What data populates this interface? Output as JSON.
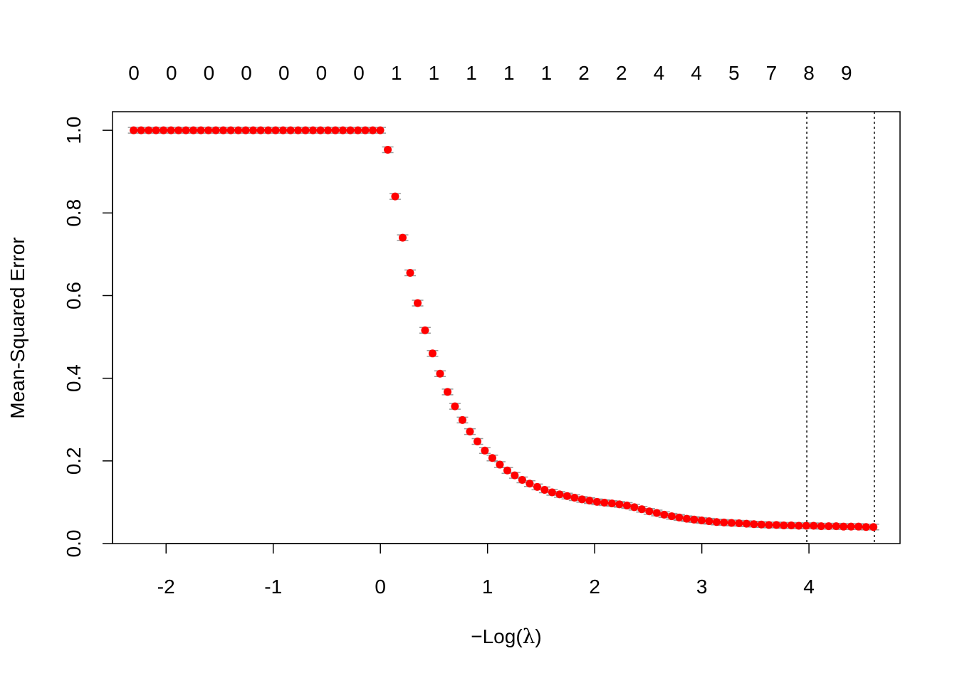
{
  "chart_data": {
    "type": "scatter",
    "title": "",
    "xlabel_prefix": "−",
    "xlabel_main": "Log(",
    "xlabel_symbol": "λ",
    "xlabel_suffix": ")",
    "ylabel": "Mean-Squared Error",
    "xlim": [
      -2.5,
      4.85
    ],
    "ylim": [
      0.0,
      1.045
    ],
    "x_ticks": [
      -2,
      -1,
      0,
      1,
      2,
      3,
      4
    ],
    "x_tick_labels": [
      "-2",
      "-1",
      "0",
      "1",
      "2",
      "3",
      "4"
    ],
    "y_ticks": [
      0.0,
      0.2,
      0.4,
      0.6,
      0.8,
      1.0
    ],
    "y_tick_labels": [
      "0.0",
      "0.2",
      "0.4",
      "0.6",
      "0.8",
      "1.0"
    ],
    "top_axis": {
      "x": [
        -2.3,
        -1.95,
        -1.6,
        -1.25,
        -0.9,
        -0.55,
        -0.2,
        0.15,
        0.5,
        0.85,
        1.2,
        1.55,
        1.9,
        2.25,
        2.6,
        2.95,
        3.3,
        3.65,
        4.0,
        4.35
      ],
      "labels": [
        "0",
        "0",
        "0",
        "0",
        "0",
        "0",
        "0",
        "1",
        "1",
        "1",
        "1",
        "1",
        "2",
        "2",
        "4",
        "4",
        "5",
        "7",
        "8",
        "9"
      ]
    },
    "vlines": [
      3.98,
      4.61
    ],
    "grid": false,
    "point_color": "#ff0000",
    "errorbar_color": "#999999",
    "series": [
      {
        "x": [
          -2.303,
          -2.233,
          -2.163,
          -2.094,
          -2.024,
          -1.954,
          -1.884,
          -1.815,
          -1.745,
          -1.675,
          -1.605,
          -1.536,
          -1.466,
          -1.396,
          -1.326,
          -1.257,
          -1.187,
          -1.117,
          -1.047,
          -0.978,
          -0.908,
          -0.838,
          -0.768,
          -0.699,
          -0.629,
          -0.559,
          -0.489,
          -0.42,
          -0.35,
          -0.28,
          -0.21,
          -0.141,
          -0.071,
          -0.001,
          0.069,
          0.138,
          0.208,
          0.278,
          0.348,
          0.417,
          0.487,
          0.557,
          0.627,
          0.696,
          0.766,
          0.836,
          0.906,
          0.975,
          1.045,
          1.115,
          1.185,
          1.254,
          1.324,
          1.394,
          1.464,
          1.533,
          1.603,
          1.673,
          1.743,
          1.812,
          1.882,
          1.952,
          2.022,
          2.091,
          2.161,
          2.231,
          2.301,
          2.37,
          2.44,
          2.51,
          2.58,
          2.649,
          2.719,
          2.789,
          2.859,
          2.928,
          2.998,
          3.068,
          3.138,
          3.207,
          3.277,
          3.347,
          3.417,
          3.486,
          3.556,
          3.626,
          3.696,
          3.765,
          3.835,
          3.905,
          3.975,
          4.044,
          4.114,
          4.184,
          4.254,
          4.323,
          4.393,
          4.463,
          4.533,
          4.602
        ],
        "y": [
          1.0,
          1.0,
          1.0,
          1.0,
          1.0,
          1.0,
          1.0,
          1.0,
          1.0,
          1.0,
          1.0,
          1.0,
          1.0,
          1.0,
          1.0,
          1.0,
          1.0,
          1.0,
          1.0,
          1.0,
          1.0,
          1.0,
          1.0,
          1.0,
          1.0,
          1.0,
          1.0,
          1.0,
          1.0,
          1.0,
          1.0,
          1.0,
          1.0,
          1.0,
          0.953,
          0.84,
          0.74,
          0.655,
          0.582,
          0.516,
          0.46,
          0.411,
          0.367,
          0.332,
          0.299,
          0.271,
          0.247,
          0.225,
          0.207,
          0.191,
          0.177,
          0.165,
          0.154,
          0.145,
          0.137,
          0.13,
          0.124,
          0.119,
          0.115,
          0.111,
          0.107,
          0.104,
          0.101,
          0.099,
          0.097,
          0.095,
          0.092,
          0.088,
          0.083,
          0.078,
          0.074,
          0.07,
          0.066,
          0.063,
          0.06,
          0.058,
          0.056,
          0.054,
          0.052,
          0.051,
          0.05,
          0.049,
          0.048,
          0.047,
          0.046,
          0.045,
          0.045,
          0.044,
          0.044,
          0.043,
          0.043,
          0.043,
          0.042,
          0.042,
          0.042,
          0.041,
          0.041,
          0.041,
          0.04,
          0.04
        ]
      }
    ]
  }
}
